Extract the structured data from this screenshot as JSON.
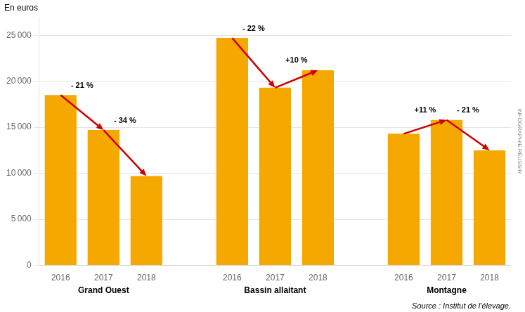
{
  "chart_data": {
    "type": "bar",
    "categories": [
      "2016",
      "2017",
      "2018"
    ],
    "groups": [
      {
        "name": "Grand Ouest",
        "values": [
          18500,
          14700,
          9700
        ]
      },
      {
        "name": "Bassin allaitant",
        "values": [
          24700,
          19300,
          21200
        ]
      },
      {
        "name": "Montagne",
        "values": [
          14300,
          15800,
          12500
        ]
      }
    ],
    "color": "#F5A800",
    "annotations": [
      {
        "group": "Grand Ouest",
        "from": "2016",
        "to": "2017",
        "text": "- 21 %",
        "color": "#CC0000"
      },
      {
        "group": "Grand Ouest",
        "from": "2017",
        "to": "2018",
        "text": "- 34 %",
        "color": "#CC0000"
      },
      {
        "group": "Bassin allaitant",
        "from": "2016",
        "to": "2017",
        "text": "- 22 %",
        "color": "#CC0000"
      },
      {
        "group": "Bassin allaitant",
        "from": "2017",
        "to": "2018",
        "text": "+10 %",
        "color": "#CC0000"
      },
      {
        "group": "Montagne",
        "from": "2016",
        "to": "2017",
        "text": "+11 %",
        "color": "#CC0000"
      },
      {
        "group": "Montagne",
        "from": "2017",
        "to": "2018",
        "text": "- 21 %",
        "color": "#CC0000"
      }
    ],
    "ylabel": "En euros",
    "source": "Source : Institut de l'élevage.",
    "watermark": "INFOGRAPHIE RÉUSSIR",
    "ylim": [
      0,
      27000
    ],
    "yticks": [
      0,
      {
        "value": 5000,
        "label": "5 000"
      },
      {
        "value": 10000,
        "label": "10 000"
      },
      {
        "value": 15000,
        "label": "15 000"
      },
      {
        "value": 20000,
        "label": "20 000"
      },
      {
        "value": 25000,
        "label": "25 000"
      }
    ],
    "grid": true
  }
}
